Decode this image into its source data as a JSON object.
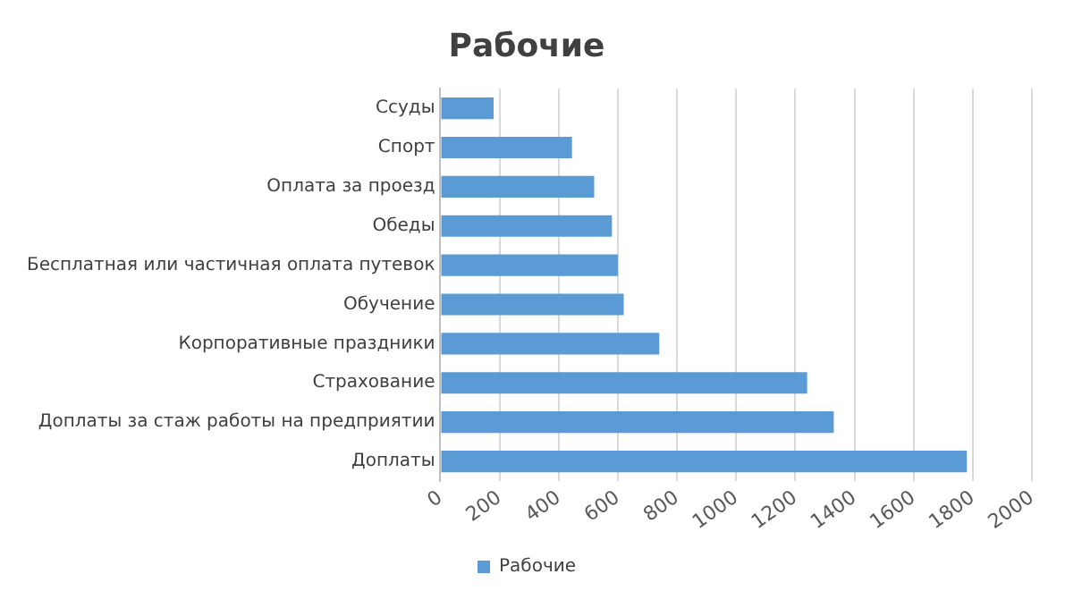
{
  "chart_data": {
    "type": "bar",
    "orientation": "horizontal",
    "title": "Рабочие",
    "categories": [
      "Ссуды",
      "Спорт",
      "Оплата за проезд",
      "Обеды",
      "Бесплатная или частичная оплата путевок",
      "Обучение",
      "Корпоративные праздники",
      "Страхование",
      "Доплаты за стаж работы на предприятии",
      "Доплаты"
    ],
    "series": [
      {
        "name": "Рабочие",
        "color": "#5b9bd5",
        "values": [
          180,
          445,
          520,
          580,
          600,
          620,
          740,
          1240,
          1330,
          1780
        ]
      }
    ],
    "xlim": [
      0,
      2000
    ],
    "xticks": [
      0,
      200,
      400,
      600,
      800,
      1000,
      1200,
      1400,
      1600,
      1800,
      2000
    ],
    "grid": "x",
    "legend": "bottom"
  }
}
